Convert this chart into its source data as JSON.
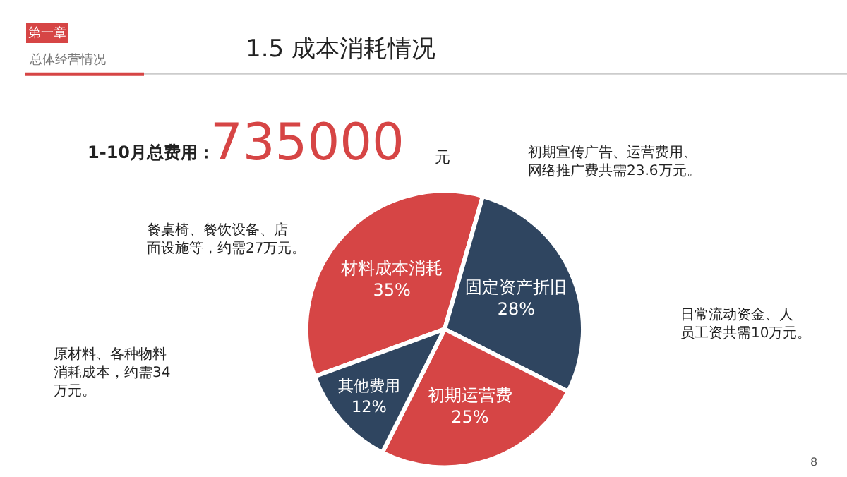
{
  "chart_data": {
    "type": "pie",
    "title": "1.5 成本消耗情况",
    "categories": [
      "材料成本消耗",
      "固定资产折旧",
      "初期运营费",
      "其他费用"
    ],
    "values": [
      35,
      28,
      25,
      12
    ],
    "colors": [
      "#d64545",
      "#2f4560",
      "#d64545",
      "#2f4560"
    ],
    "value_labels": [
      "35%",
      "28%",
      "25%",
      "12%"
    ],
    "legend": false,
    "annotations": [
      "第一章",
      "总体经营情况",
      "1-10月总费用：",
      "735000",
      "元",
      "原材料、各种物料消耗成本，约需34万元。",
      "餐桌椅、餐饮设备、店面设施等，约需27万元。",
      "初期宣传广告、运营费用、网络推广费共需23.6万元。",
      "日常流动资金、人员工资共需10万元。",
      "8"
    ]
  }
}
